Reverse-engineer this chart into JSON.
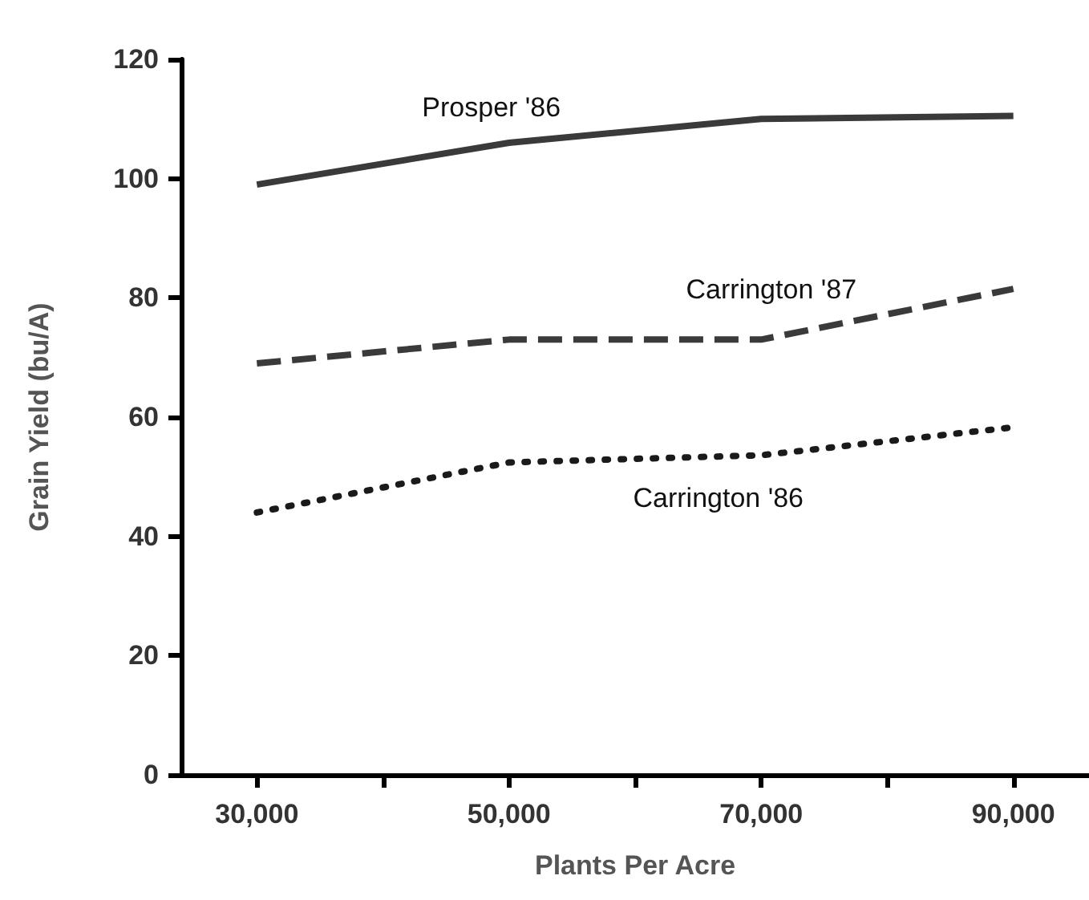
{
  "chart_data": {
    "type": "line",
    "xlabel": "Plants Per Acre",
    "ylabel": "Grain Yield (bu/A)",
    "xlim": [
      24000,
      96000
    ],
    "xticks": [
      {
        "value": 30000,
        "label": "30,000"
      },
      {
        "value": 40000,
        "label": null
      },
      {
        "value": 50000,
        "label": "50,000"
      },
      {
        "value": 60000,
        "label": null
      },
      {
        "value": 70000,
        "label": "70,000"
      },
      {
        "value": 80000,
        "label": null
      },
      {
        "value": 90000,
        "label": "90,000"
      }
    ],
    "ylim": [
      0,
      120
    ],
    "yticks": [
      0,
      20,
      40,
      60,
      80,
      100,
      120
    ],
    "x": [
      30000,
      50000,
      70000,
      90000
    ],
    "series": [
      {
        "name": "Prosper '86",
        "color": "#3a3a3a",
        "line_style": "solid",
        "values": [
          99,
          106,
          110,
          110.5
        ]
      },
      {
        "name": "Carrington '87",
        "color": "#3a3a3a",
        "line_style": "dashed",
        "values": [
          69,
          73,
          73,
          81.5
        ]
      },
      {
        "name": "Carrington '86",
        "color": "#1a1a1a",
        "line_style": "dotted",
        "values": [
          44,
          52.4,
          53.6,
          58.3
        ]
      }
    ],
    "marker": "none",
    "grid": false,
    "legend": false
  }
}
